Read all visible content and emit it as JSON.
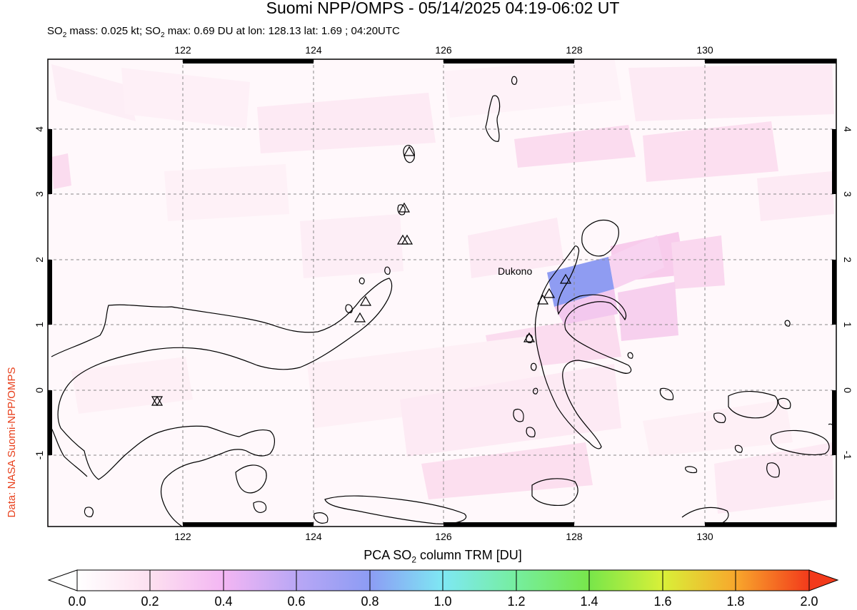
{
  "header": {
    "title": "Suomi NPP/OMPS - 05/14/2025 04:19-06:02 UT",
    "subtitle_parts": [
      "SO",
      "2",
      " mass: 0.025 kt; SO",
      "2",
      " max: 0.69 DU at lon: 128.13 lat: 1.69 ; 04:20UTC"
    ]
  },
  "credit": "Data: NASA Suomi-NPP/OMPS",
  "map": {
    "lon_labels": [
      "122",
      "124",
      "126",
      "128",
      "130"
    ],
    "lat_labels": [
      "4",
      "3",
      "2",
      "1",
      "0",
      "-1"
    ],
    "volcano_label": "Dukono",
    "colors": {
      "border": "#000000",
      "grid": "#888888",
      "so2_max": "#8f9cf2",
      "so2_low": "#fde3f2"
    }
  },
  "colorbar": {
    "title_parts": [
      "PCA SO",
      "2",
      " column TRM [DU]"
    ],
    "ticks": [
      "0.0",
      "0.2",
      "0.4",
      "0.6",
      "0.8",
      "1.0",
      "1.2",
      "1.4",
      "1.6",
      "1.8",
      "2.0"
    ]
  }
}
